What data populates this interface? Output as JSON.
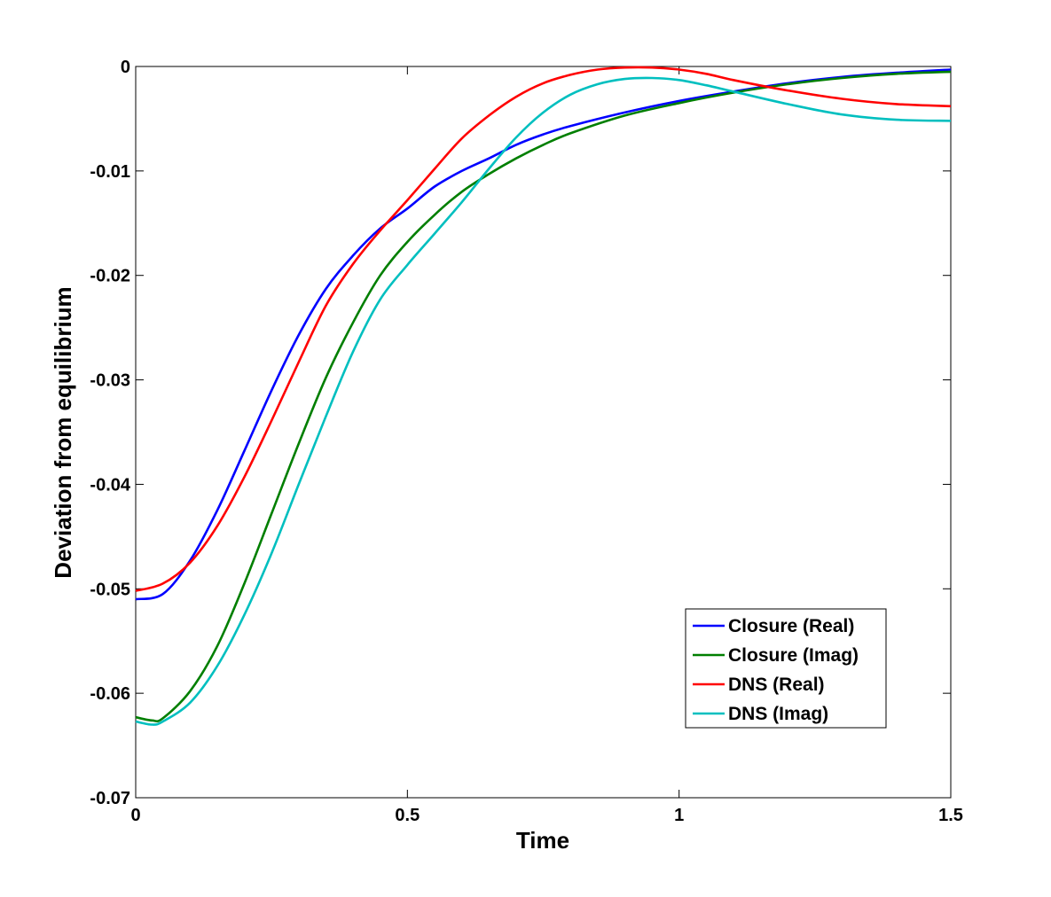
{
  "chart_data": {
    "type": "line",
    "title": "",
    "xlabel": "Time",
    "ylabel": "Deviation from equilibrium",
    "xlim": [
      0,
      1.5
    ],
    "ylim": [
      -0.07,
      0
    ],
    "grid": false,
    "legend_position": "bottom-right",
    "x_ticks": [
      0,
      0.5,
      1,
      1.5
    ],
    "x_tick_labels": [
      "0",
      "0.5",
      "1",
      "1.5"
    ],
    "y_ticks": [
      0,
      -0.01,
      -0.02,
      -0.03,
      -0.04,
      -0.05,
      -0.06,
      -0.07
    ],
    "y_tick_labels": [
      "0",
      "-0.01",
      "-0.02",
      "-0.03",
      "-0.04",
      "-0.05",
      "-0.06",
      "-0.07"
    ],
    "series": [
      {
        "name": "Closure (Real)",
        "color": "#0000ff",
        "x": [
          0,
          0.05,
          0.1,
          0.15,
          0.2,
          0.25,
          0.3,
          0.35,
          0.4,
          0.45,
          0.5,
          0.55,
          0.6,
          0.65,
          0.7,
          0.75,
          0.8,
          0.9,
          1.0,
          1.1,
          1.2,
          1.3,
          1.4,
          1.5
        ],
        "y": [
          -0.051,
          -0.0505,
          -0.0473,
          -0.0425,
          -0.0368,
          -0.031,
          -0.0257,
          -0.0213,
          -0.0181,
          -0.0155,
          -0.0136,
          -0.0115,
          -0.01,
          -0.0088,
          -0.0075,
          -0.0065,
          -0.0057,
          -0.0044,
          -0.0033,
          -0.0024,
          -0.0016,
          -0.001,
          -0.0006,
          -0.0003
        ]
      },
      {
        "name": "Closure (Imag)",
        "color": "#007f00",
        "x": [
          0,
          0.03,
          0.05,
          0.1,
          0.15,
          0.2,
          0.25,
          0.3,
          0.35,
          0.4,
          0.45,
          0.5,
          0.55,
          0.6,
          0.65,
          0.7,
          0.75,
          0.8,
          0.9,
          1.0,
          1.1,
          1.2,
          1.3,
          1.4,
          1.5
        ],
        "y": [
          -0.0623,
          -0.0626,
          -0.0624,
          -0.0598,
          -0.0555,
          -0.0495,
          -0.0428,
          -0.0361,
          -0.0298,
          -0.0245,
          -0.02,
          -0.0168,
          -0.0142,
          -0.012,
          -0.0103,
          -0.0088,
          -0.0075,
          -0.0064,
          -0.0047,
          -0.0035,
          -0.0025,
          -0.0017,
          -0.0011,
          -0.0007,
          -0.0005
        ]
      },
      {
        "name": "DNS (Real)",
        "color": "#ff0000",
        "x": [
          0,
          0.05,
          0.1,
          0.15,
          0.2,
          0.25,
          0.3,
          0.35,
          0.4,
          0.45,
          0.5,
          0.55,
          0.6,
          0.65,
          0.7,
          0.75,
          0.8,
          0.85,
          0.9,
          0.95,
          1.0,
          1.05,
          1.1,
          1.2,
          1.3,
          1.4,
          1.5
        ],
        "y": [
          -0.0502,
          -0.0495,
          -0.0475,
          -0.044,
          -0.0393,
          -0.0339,
          -0.0283,
          -0.0229,
          -0.0189,
          -0.0157,
          -0.0128,
          -0.0098,
          -0.0069,
          -0.0047,
          -0.0029,
          -0.0016,
          -0.0008,
          -0.0003,
          -0.0001,
          -0.0001,
          -0.0003,
          -0.0007,
          -0.0013,
          -0.0023,
          -0.0031,
          -0.0036,
          -0.0038
        ]
      },
      {
        "name": "DNS (Imag)",
        "color": "#00bfbf",
        "x": [
          0,
          0.03,
          0.05,
          0.1,
          0.15,
          0.2,
          0.25,
          0.3,
          0.35,
          0.4,
          0.45,
          0.5,
          0.55,
          0.6,
          0.65,
          0.7,
          0.75,
          0.8,
          0.85,
          0.9,
          0.95,
          1.0,
          1.05,
          1.1,
          1.2,
          1.3,
          1.4,
          1.5
        ],
        "y": [
          -0.0627,
          -0.063,
          -0.0627,
          -0.0609,
          -0.0574,
          -0.0525,
          -0.0466,
          -0.04,
          -0.0335,
          -0.0273,
          -0.0223,
          -0.019,
          -0.016,
          -0.013,
          -0.0098,
          -0.0068,
          -0.0044,
          -0.0027,
          -0.0017,
          -0.0012,
          -0.0011,
          -0.0013,
          -0.0018,
          -0.0024,
          -0.0036,
          -0.0046,
          -0.0051,
          -0.0052
        ]
      }
    ]
  }
}
